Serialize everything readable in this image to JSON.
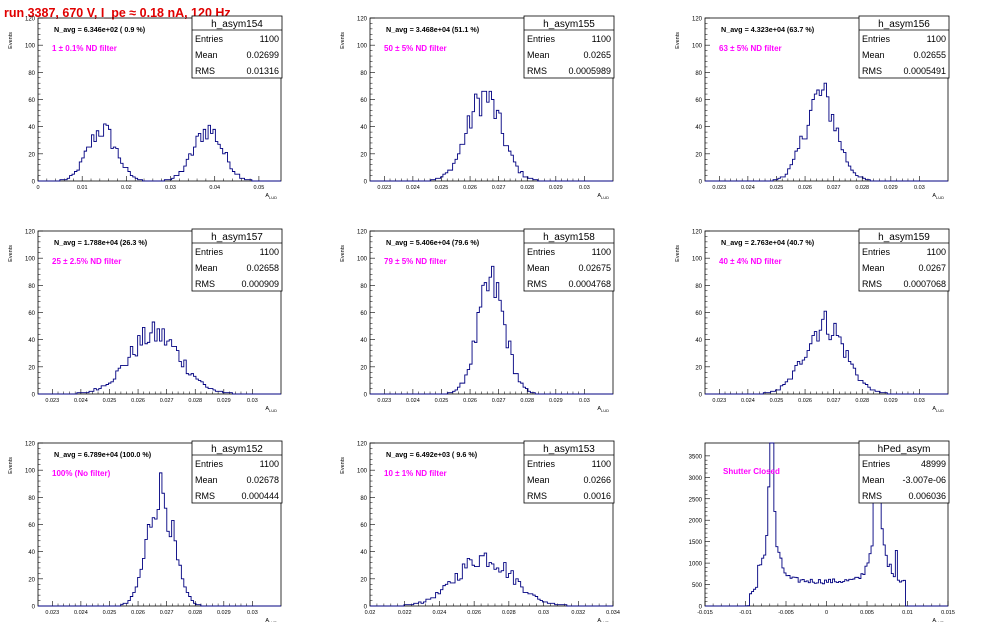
{
  "page_title": "run 3387,   670 V, I_pe ≈ 0.18 nA, 120 Hz",
  "chart_data": [
    {
      "type": "histogram",
      "name": "h_asym154",
      "stats": [
        [
          "Entries",
          "1100"
        ],
        [
          "Mean",
          "0.02699"
        ],
        [
          "RMS",
          "0.01316"
        ]
      ],
      "navg": "N_avg = 6.346e+02 ( 0.9 %)",
      "filter": "1 ± 0.1% ND filter",
      "ylabel": "Events",
      "xlabel": "A_LUD",
      "xlim": [
        0,
        0.055
      ],
      "ylim": [
        0,
        120
      ],
      "yticks": [
        0,
        20,
        40,
        60,
        80,
        100,
        120
      ],
      "xticks": [
        0,
        0.01,
        0.02,
        0.03,
        0.04,
        0.05
      ],
      "xticklabels": [
        "0",
        "0.01",
        "0.02",
        "0.03",
        "0.04",
        "0.05"
      ],
      "peaks": [
        {
          "mu": 0.0145,
          "sigma": 0.0032,
          "amp": 38
        },
        {
          "mu": 0.0385,
          "sigma": 0.0033,
          "amp": 38
        }
      ],
      "nbins": 100
    },
    {
      "type": "histogram",
      "name": "h_asym155",
      "stats": [
        [
          "Entries",
          "1100"
        ],
        [
          "Mean",
          "0.0265"
        ],
        [
          "RMS",
          "0.0005989"
        ]
      ],
      "navg": "N_avg = 3.468e+04 (51.1 %)",
      "filter": "50 ± 5% ND filter",
      "ylabel": "Events",
      "xlabel": "A_LUD",
      "xlim": [
        0.0225,
        0.031
      ],
      "ylim": [
        0,
        120
      ],
      "yticks": [
        0,
        20,
        40,
        60,
        80,
        100,
        120
      ],
      "xticks": [
        0.023,
        0.024,
        0.025,
        0.026,
        0.027,
        0.028,
        0.029,
        0.03
      ],
      "xticklabels": [
        "0.023",
        "0.024",
        "0.025",
        "0.026",
        "0.027",
        "0.028",
        "0.029",
        "0.03"
      ],
      "peaks": [
        {
          "mu": 0.0265,
          "sigma": 0.0006,
          "amp": 62
        }
      ],
      "nbins": 100
    },
    {
      "type": "histogram",
      "name": "h_asym156",
      "stats": [
        [
          "Entries",
          "1100"
        ],
        [
          "Mean",
          "0.02655"
        ],
        [
          "RMS",
          "0.0005491"
        ]
      ],
      "navg": "N_avg = 4.323e+04 (63.7 %)",
      "filter": "63 ± 5% ND filter",
      "ylabel": "Events",
      "xlabel": "A_LUD",
      "xlim": [
        0.0225,
        0.031
      ],
      "ylim": [
        0,
        120
      ],
      "yticks": [
        0,
        20,
        40,
        60,
        80,
        100,
        120
      ],
      "xticks": [
        0.023,
        0.024,
        0.025,
        0.026,
        0.027,
        0.028,
        0.029,
        0.03
      ],
      "xticklabels": [
        "0.023",
        "0.024",
        "0.025",
        "0.026",
        "0.027",
        "0.028",
        "0.029",
        "0.03"
      ],
      "peaks": [
        {
          "mu": 0.02655,
          "sigma": 0.00055,
          "amp": 63
        }
      ],
      "nbins": 100
    },
    {
      "type": "histogram",
      "name": "h_asym157",
      "stats": [
        [
          "Entries",
          "1100"
        ],
        [
          "Mean",
          "0.02658"
        ],
        [
          "RMS",
          "0.000909"
        ]
      ],
      "navg": "N_avg = 1.788e+04 (26.3 %)",
      "filter": "25 ± 2.5% ND filter",
      "ylabel": "Events",
      "xlabel": "A_LUD",
      "xlim": [
        0.0225,
        0.031
      ],
      "ylim": [
        0,
        120
      ],
      "yticks": [
        0,
        20,
        40,
        60,
        80,
        100,
        120
      ],
      "xticks": [
        0.023,
        0.024,
        0.025,
        0.026,
        0.027,
        0.028,
        0.029,
        0.03
      ],
      "xticklabels": [
        "0.023",
        "0.024",
        "0.025",
        "0.026",
        "0.027",
        "0.028",
        "0.029",
        "0.03"
      ],
      "peaks": [
        {
          "mu": 0.02658,
          "sigma": 0.0009,
          "amp": 44
        }
      ],
      "nbins": 100
    },
    {
      "type": "histogram",
      "name": "h_asym158",
      "stats": [
        [
          "Entries",
          "1100"
        ],
        [
          "Mean",
          "0.02675"
        ],
        [
          "RMS",
          "0.0004768"
        ]
      ],
      "navg": "N_avg = 5.406e+04 (79.6 %)",
      "filter": "79 ± 5% ND filter",
      "ylabel": "Events",
      "xlabel": "A_LUD",
      "xlim": [
        0.0225,
        0.031
      ],
      "ylim": [
        0,
        120
      ],
      "yticks": [
        0,
        20,
        40,
        60,
        80,
        100,
        120
      ],
      "xticks": [
        0.023,
        0.024,
        0.025,
        0.026,
        0.027,
        0.028,
        0.029,
        0.03
      ],
      "xticklabels": [
        "0.023",
        "0.024",
        "0.025",
        "0.026",
        "0.027",
        "0.028",
        "0.029",
        "0.03"
      ],
      "peaks": [
        {
          "mu": 0.02675,
          "sigma": 0.00048,
          "amp": 80
        }
      ],
      "nbins": 100
    },
    {
      "type": "histogram",
      "name": "h_asym159",
      "stats": [
        [
          "Entries",
          "1100"
        ],
        [
          "Mean",
          "0.0267"
        ],
        [
          "RMS",
          "0.0007068"
        ]
      ],
      "navg": "N_avg = 2.763e+04 (40.7 %)",
      "filter": "40 ± 4% ND filter",
      "ylabel": "Events",
      "xlabel": "A_LUD",
      "xlim": [
        0.0225,
        0.031
      ],
      "ylim": [
        0,
        120
      ],
      "yticks": [
        0,
        20,
        40,
        60,
        80,
        100,
        120
      ],
      "xticks": [
        0.023,
        0.024,
        0.025,
        0.026,
        0.027,
        0.028,
        0.029,
        0.03
      ],
      "xticklabels": [
        "0.023",
        "0.024",
        "0.025",
        "0.026",
        "0.027",
        "0.028",
        "0.029",
        "0.03"
      ],
      "peaks": [
        {
          "mu": 0.0267,
          "sigma": 0.0007,
          "amp": 52
        }
      ],
      "nbins": 100
    },
    {
      "type": "histogram",
      "name": "h_asym152",
      "stats": [
        [
          "Entries",
          "1100"
        ],
        [
          "Mean",
          "0.02678"
        ],
        [
          "RMS",
          "0.000444"
        ]
      ],
      "navg": "N_avg = 6.789e+04 (100.0 %)",
      "filter": "100% (No filter)",
      "ylabel": "Events",
      "xlabel": "A_LUD",
      "xlim": [
        0.0225,
        0.031
      ],
      "ylim": [
        0,
        120
      ],
      "yticks": [
        0,
        20,
        40,
        60,
        80,
        100,
        120
      ],
      "xticks": [
        0.023,
        0.024,
        0.025,
        0.026,
        0.027,
        0.028,
        0.029,
        0.03
      ],
      "xticklabels": [
        "0.023",
        "0.024",
        "0.025",
        "0.026",
        "0.027",
        "0.028",
        "0.029",
        "0.03"
      ],
      "peaks": [
        {
          "mu": 0.02678,
          "sigma": 0.00044,
          "amp": 85
        }
      ],
      "nbins": 100
    },
    {
      "type": "histogram",
      "name": "h_asym153",
      "stats": [
        [
          "Entries",
          "1100"
        ],
        [
          "Mean",
          "0.0266"
        ],
        [
          "RMS",
          "0.0016"
        ]
      ],
      "navg": "N_avg = 6.492e+03 ( 9.6 %)",
      "filter": "10 ± 1% ND filter",
      "ylabel": "Events",
      "xlabel": "A_LUD",
      "xlim": [
        0.02,
        0.034
      ],
      "ylim": [
        0,
        120
      ],
      "yticks": [
        0,
        20,
        40,
        60,
        80,
        100,
        120
      ],
      "xticks": [
        0.02,
        0.022,
        0.024,
        0.026,
        0.028,
        0.03,
        0.032,
        0.034
      ],
      "xticklabels": [
        "0.02",
        "0.022",
        "0.024",
        "0.026",
        "0.028",
        "0.03",
        "0.032",
        "0.034"
      ],
      "peaks": [
        {
          "mu": 0.0266,
          "sigma": 0.0016,
          "amp": 36
        }
      ],
      "nbins": 100
    },
    {
      "type": "histogram",
      "name": "hPed_asym",
      "stats": [
        [
          "Entries",
          "48999"
        ],
        [
          "Mean",
          "-3.007e-06"
        ],
        [
          "RMS",
          "0.006036"
        ]
      ],
      "navg": "",
      "filter": "Shutter Closed",
      "ylabel": "",
      "xlabel": "A_LUD",
      "xlim": [
        -0.015,
        0.015
      ],
      "ylim": [
        0,
        3800
      ],
      "yticks": [
        0,
        500,
        1000,
        1500,
        2000,
        2500,
        3000,
        3500
      ],
      "xticks": [
        -0.015,
        -0.01,
        -0.005,
        0,
        0.005,
        0.01,
        0.015
      ],
      "xticklabels": [
        "-0.015",
        "-0.01",
        "-0.005",
        "0",
        "0.005",
        "0.01",
        "0.015"
      ],
      "pedestal": true,
      "nbins": 120
    }
  ],
  "colors": {
    "title": "#e00000",
    "histogram_line": "#000080",
    "annotation": "#ff00ff",
    "frame": "#000000",
    "background": "#ffffff"
  }
}
